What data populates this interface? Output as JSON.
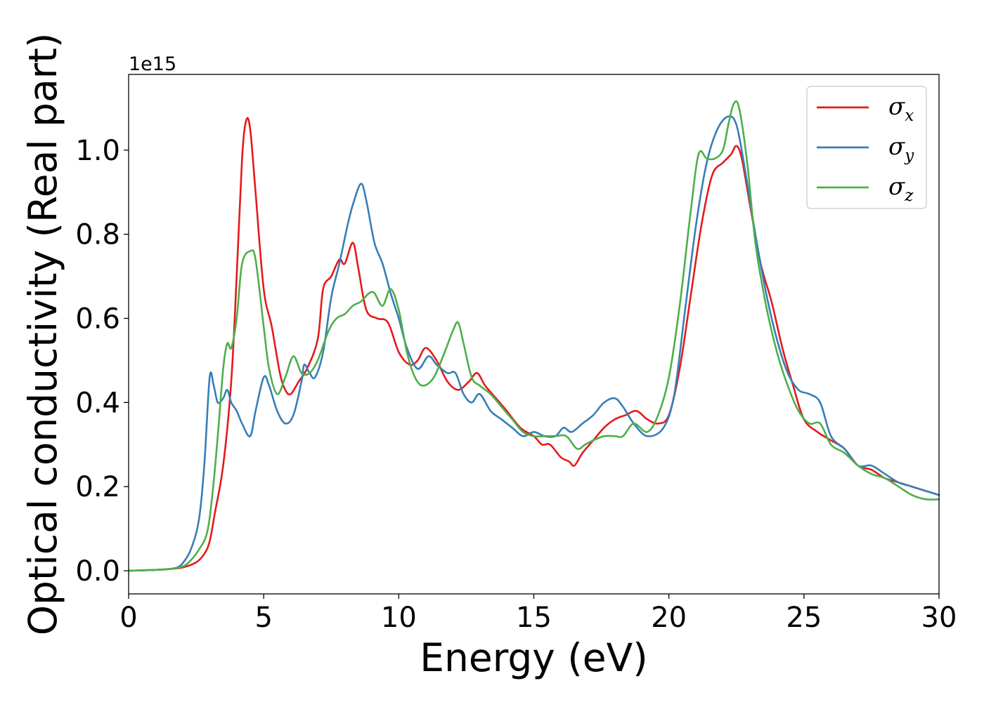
{
  "chart_data": {
    "type": "line",
    "xlabel": "Energy (eV)",
    "ylabel": "Optical conductivity (Real part)",
    "y_offset_label": "1e15",
    "xlim": [
      0,
      30
    ],
    "ylim": [
      -0.055,
      1.18
    ],
    "x_ticks": [
      0,
      5,
      10,
      15,
      20,
      25,
      30
    ],
    "x_tick_labels": [
      "0",
      "5",
      "10",
      "15",
      "20",
      "25",
      "30"
    ],
    "y_ticks": [
      0.0,
      0.2,
      0.4,
      0.6,
      0.8,
      1.0
    ],
    "y_tick_labels": [
      "0.0",
      "0.2",
      "0.4",
      "0.6",
      "0.8",
      "1.0"
    ],
    "grid": false,
    "legend_position": "top-right",
    "series": [
      {
        "name": "σx",
        "sym": "σ",
        "sub": "x",
        "color": "#e41a1c",
        "points": [
          [
            0,
            0
          ],
          [
            1,
            0.002
          ],
          [
            1.5,
            0.004
          ],
          [
            2,
            0.008
          ],
          [
            2.5,
            0.02
          ],
          [
            2.8,
            0.04
          ],
          [
            3.0,
            0.07
          ],
          [
            3.2,
            0.14
          ],
          [
            3.5,
            0.25
          ],
          [
            3.8,
            0.45
          ],
          [
            4.0,
            0.7
          ],
          [
            4.2,
            0.98
          ],
          [
            4.35,
            1.07
          ],
          [
            4.5,
            1.05
          ],
          [
            4.7,
            0.9
          ],
          [
            5.0,
            0.67
          ],
          [
            5.3,
            0.58
          ],
          [
            5.6,
            0.47
          ],
          [
            5.8,
            0.43
          ],
          [
            6.0,
            0.42
          ],
          [
            6.3,
            0.45
          ],
          [
            6.6,
            0.48
          ],
          [
            7.0,
            0.55
          ],
          [
            7.2,
            0.67
          ],
          [
            7.5,
            0.7
          ],
          [
            7.8,
            0.74
          ],
          [
            8.0,
            0.73
          ],
          [
            8.3,
            0.78
          ],
          [
            8.5,
            0.72
          ],
          [
            8.8,
            0.62
          ],
          [
            9.2,
            0.6
          ],
          [
            9.6,
            0.59
          ],
          [
            10.0,
            0.52
          ],
          [
            10.4,
            0.49
          ],
          [
            10.7,
            0.5
          ],
          [
            11.0,
            0.53
          ],
          [
            11.4,
            0.5
          ],
          [
            11.8,
            0.45
          ],
          [
            12.2,
            0.43
          ],
          [
            12.6,
            0.45
          ],
          [
            12.9,
            0.47
          ],
          [
            13.2,
            0.44
          ],
          [
            13.6,
            0.41
          ],
          [
            14.0,
            0.38
          ],
          [
            14.5,
            0.34
          ],
          [
            15.0,
            0.32
          ],
          [
            15.3,
            0.3
          ],
          [
            15.6,
            0.3
          ],
          [
            16.0,
            0.27
          ],
          [
            16.3,
            0.26
          ],
          [
            16.5,
            0.25
          ],
          [
            16.8,
            0.28
          ],
          [
            17.2,
            0.31
          ],
          [
            17.6,
            0.34
          ],
          [
            18.0,
            0.36
          ],
          [
            18.4,
            0.37
          ],
          [
            18.8,
            0.38
          ],
          [
            19.2,
            0.36
          ],
          [
            19.6,
            0.35
          ],
          [
            20.0,
            0.37
          ],
          [
            20.4,
            0.48
          ],
          [
            20.8,
            0.65
          ],
          [
            21.2,
            0.82
          ],
          [
            21.6,
            0.94
          ],
          [
            22.0,
            0.97
          ],
          [
            22.3,
            0.99
          ],
          [
            22.5,
            1.01
          ],
          [
            22.7,
            0.98
          ],
          [
            23.0,
            0.87
          ],
          [
            23.4,
            0.73
          ],
          [
            23.8,
            0.64
          ],
          [
            24.2,
            0.53
          ],
          [
            24.6,
            0.44
          ],
          [
            25.0,
            0.36
          ],
          [
            25.5,
            0.33
          ],
          [
            26.0,
            0.31
          ],
          [
            26.5,
            0.29
          ],
          [
            27.0,
            0.25
          ],
          [
            27.5,
            0.24
          ],
          [
            28.0,
            0.22
          ],
          [
            28.5,
            0.21
          ],
          [
            29.0,
            0.2
          ],
          [
            29.5,
            0.19
          ],
          [
            30.0,
            0.18
          ]
        ]
      },
      {
        "name": "σy",
        "sym": "σ",
        "sub": "y",
        "color": "#377eb8",
        "points": [
          [
            0,
            0
          ],
          [
            1,
            0.002
          ],
          [
            1.5,
            0.004
          ],
          [
            1.8,
            0.008
          ],
          [
            2.0,
            0.018
          ],
          [
            2.3,
            0.05
          ],
          [
            2.6,
            0.12
          ],
          [
            2.8,
            0.25
          ],
          [
            3.0,
            0.46
          ],
          [
            3.15,
            0.44
          ],
          [
            3.3,
            0.4
          ],
          [
            3.5,
            0.41
          ],
          [
            3.65,
            0.43
          ],
          [
            3.8,
            0.4
          ],
          [
            4.0,
            0.38
          ],
          [
            4.2,
            0.35
          ],
          [
            4.5,
            0.32
          ],
          [
            4.7,
            0.38
          ],
          [
            5.0,
            0.46
          ],
          [
            5.2,
            0.44
          ],
          [
            5.5,
            0.38
          ],
          [
            5.8,
            0.35
          ],
          [
            6.1,
            0.37
          ],
          [
            6.4,
            0.45
          ],
          [
            6.5,
            0.49
          ],
          [
            6.7,
            0.47
          ],
          [
            6.9,
            0.46
          ],
          [
            7.2,
            0.52
          ],
          [
            7.5,
            0.65
          ],
          [
            7.8,
            0.73
          ],
          [
            8.1,
            0.82
          ],
          [
            8.3,
            0.87
          ],
          [
            8.6,
            0.92
          ],
          [
            8.8,
            0.88
          ],
          [
            9.1,
            0.78
          ],
          [
            9.4,
            0.73
          ],
          [
            9.7,
            0.66
          ],
          [
            10.0,
            0.6
          ],
          [
            10.3,
            0.53
          ],
          [
            10.7,
            0.48
          ],
          [
            11.1,
            0.51
          ],
          [
            11.4,
            0.49
          ],
          [
            11.8,
            0.47
          ],
          [
            12.1,
            0.47
          ],
          [
            12.4,
            0.42
          ],
          [
            12.7,
            0.4
          ],
          [
            13.0,
            0.42
          ],
          [
            13.4,
            0.38
          ],
          [
            13.8,
            0.36
          ],
          [
            14.2,
            0.34
          ],
          [
            14.6,
            0.32
          ],
          [
            15.0,
            0.33
          ],
          [
            15.4,
            0.32
          ],
          [
            15.8,
            0.32
          ],
          [
            16.1,
            0.34
          ],
          [
            16.4,
            0.33
          ],
          [
            16.8,
            0.35
          ],
          [
            17.2,
            0.37
          ],
          [
            17.6,
            0.4
          ],
          [
            18.0,
            0.41
          ],
          [
            18.3,
            0.39
          ],
          [
            18.7,
            0.35
          ],
          [
            19.2,
            0.32
          ],
          [
            19.8,
            0.34
          ],
          [
            20.2,
            0.42
          ],
          [
            20.6,
            0.62
          ],
          [
            21.0,
            0.82
          ],
          [
            21.4,
            0.97
          ],
          [
            21.8,
            1.05
          ],
          [
            22.2,
            1.08
          ],
          [
            22.5,
            1.06
          ],
          [
            22.8,
            0.96
          ],
          [
            23.2,
            0.8
          ],
          [
            23.6,
            0.66
          ],
          [
            24.0,
            0.55
          ],
          [
            24.4,
            0.47
          ],
          [
            24.8,
            0.43
          ],
          [
            25.2,
            0.42
          ],
          [
            25.6,
            0.4
          ],
          [
            26.0,
            0.32
          ],
          [
            26.5,
            0.29
          ],
          [
            27.0,
            0.25
          ],
          [
            27.5,
            0.25
          ],
          [
            28.0,
            0.23
          ],
          [
            28.5,
            0.21
          ],
          [
            29.0,
            0.2
          ],
          [
            29.5,
            0.19
          ],
          [
            30.0,
            0.18
          ]
        ]
      },
      {
        "name": "σz",
        "sym": "σ",
        "sub": "z",
        "color": "#4daf4a",
        "points": [
          [
            0,
            0
          ],
          [
            1,
            0.002
          ],
          [
            1.5,
            0.004
          ],
          [
            2,
            0.01
          ],
          [
            2.3,
            0.025
          ],
          [
            2.6,
            0.05
          ],
          [
            2.9,
            0.09
          ],
          [
            3.1,
            0.18
          ],
          [
            3.3,
            0.32
          ],
          [
            3.5,
            0.48
          ],
          [
            3.65,
            0.54
          ],
          [
            3.8,
            0.53
          ],
          [
            4.0,
            0.6
          ],
          [
            4.2,
            0.73
          ],
          [
            4.5,
            0.76
          ],
          [
            4.7,
            0.74
          ],
          [
            5.0,
            0.58
          ],
          [
            5.2,
            0.48
          ],
          [
            5.5,
            0.42
          ],
          [
            5.8,
            0.46
          ],
          [
            6.1,
            0.51
          ],
          [
            6.4,
            0.47
          ],
          [
            6.7,
            0.47
          ],
          [
            7.0,
            0.5
          ],
          [
            7.4,
            0.57
          ],
          [
            7.7,
            0.6
          ],
          [
            8.0,
            0.61
          ],
          [
            8.3,
            0.63
          ],
          [
            8.6,
            0.64
          ],
          [
            8.9,
            0.66
          ],
          [
            9.1,
            0.66
          ],
          [
            9.4,
            0.63
          ],
          [
            9.7,
            0.67
          ],
          [
            10.0,
            0.62
          ],
          [
            10.3,
            0.52
          ],
          [
            10.6,
            0.46
          ],
          [
            10.9,
            0.44
          ],
          [
            11.3,
            0.46
          ],
          [
            11.7,
            0.52
          ],
          [
            12.0,
            0.57
          ],
          [
            12.2,
            0.59
          ],
          [
            12.4,
            0.54
          ],
          [
            12.7,
            0.46
          ],
          [
            13.0,
            0.44
          ],
          [
            13.4,
            0.42
          ],
          [
            13.8,
            0.39
          ],
          [
            14.2,
            0.36
          ],
          [
            14.6,
            0.33
          ],
          [
            15.0,
            0.32
          ],
          [
            15.4,
            0.32
          ],
          [
            15.8,
            0.32
          ],
          [
            16.2,
            0.32
          ],
          [
            16.6,
            0.29
          ],
          [
            16.9,
            0.3
          ],
          [
            17.2,
            0.31
          ],
          [
            17.6,
            0.32
          ],
          [
            18.0,
            0.32
          ],
          [
            18.3,
            0.32
          ],
          [
            18.7,
            0.35
          ],
          [
            19.2,
            0.33
          ],
          [
            19.6,
            0.37
          ],
          [
            20.0,
            0.46
          ],
          [
            20.4,
            0.63
          ],
          [
            20.8,
            0.85
          ],
          [
            21.1,
            0.99
          ],
          [
            21.4,
            0.98
          ],
          [
            21.7,
            0.98
          ],
          [
            22.0,
            1.0
          ],
          [
            22.2,
            1.06
          ],
          [
            22.4,
            1.11
          ],
          [
            22.6,
            1.1
          ],
          [
            22.9,
            0.97
          ],
          [
            23.2,
            0.78
          ],
          [
            23.6,
            0.63
          ],
          [
            24.0,
            0.52
          ],
          [
            24.4,
            0.44
          ],
          [
            24.8,
            0.38
          ],
          [
            25.2,
            0.35
          ],
          [
            25.6,
            0.35
          ],
          [
            26.0,
            0.3
          ],
          [
            26.5,
            0.28
          ],
          [
            27.0,
            0.25
          ],
          [
            27.5,
            0.23
          ],
          [
            28.0,
            0.22
          ],
          [
            28.5,
            0.2
          ],
          [
            29.0,
            0.18
          ],
          [
            29.5,
            0.17
          ],
          [
            30.0,
            0.17
          ]
        ]
      }
    ]
  }
}
